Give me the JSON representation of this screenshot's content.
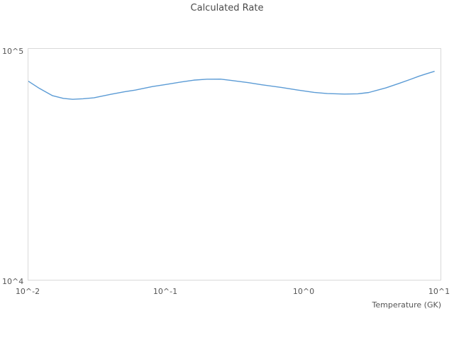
{
  "chart_data": {
    "type": "line",
    "title": "Calculated Rate",
    "xlabel": "Temperature (GK)",
    "ylabel": "",
    "x_scale": "log",
    "y_scale": "log",
    "xlim": [
      0.01,
      10
    ],
    "ylim": [
      10000,
      100000
    ],
    "grid": false,
    "legend": "none",
    "plot_border_color": "#d9d9d9",
    "line_color": "#5b9bd5",
    "x_tick_labels": [
      "10^-2",
      "10^-1",
      "10^0",
      "10^1"
    ],
    "y_tick_labels": {
      "bottom": "10^4",
      "top": "10^5"
    },
    "series": [
      {
        "name": "calculated-rate",
        "x": [
          0.01,
          0.012,
          0.015,
          0.018,
          0.021,
          0.025,
          0.03,
          0.04,
          0.05,
          0.06,
          0.08,
          0.1,
          0.13,
          0.16,
          0.2,
          0.25,
          0.3,
          0.4,
          0.5,
          0.7,
          0.9,
          1.2,
          1.5,
          2.0,
          2.5,
          3.0,
          4.0,
          5.0,
          6.0,
          7.0,
          8.0,
          9.0
        ],
        "y": [
          72400,
          67500,
          62700,
          61000,
          60500,
          60800,
          61400,
          63600,
          65200,
          66300,
          68700,
          70100,
          71900,
          73200,
          73900,
          74000,
          73000,
          71400,
          69900,
          68000,
          66400,
          64800,
          64100,
          63700,
          63900,
          64700,
          67800,
          70900,
          73700,
          76200,
          78200,
          79900
        ]
      }
    ]
  }
}
